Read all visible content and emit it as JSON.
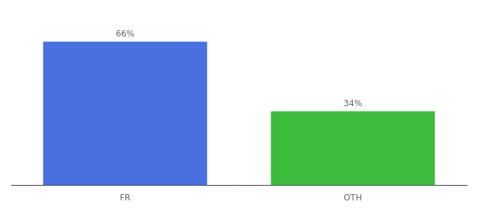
{
  "chart_data": {
    "type": "bar",
    "categories": [
      "FR",
      "OTH"
    ],
    "values": [
      66,
      34
    ],
    "value_labels": [
      "66%",
      "34%"
    ],
    "colors": [
      "#4a6fde",
      "#3dbb3d"
    ],
    "ylim": [
      0,
      80
    ],
    "data_labels": true,
    "tick_labels": "x",
    "grid": false
  }
}
